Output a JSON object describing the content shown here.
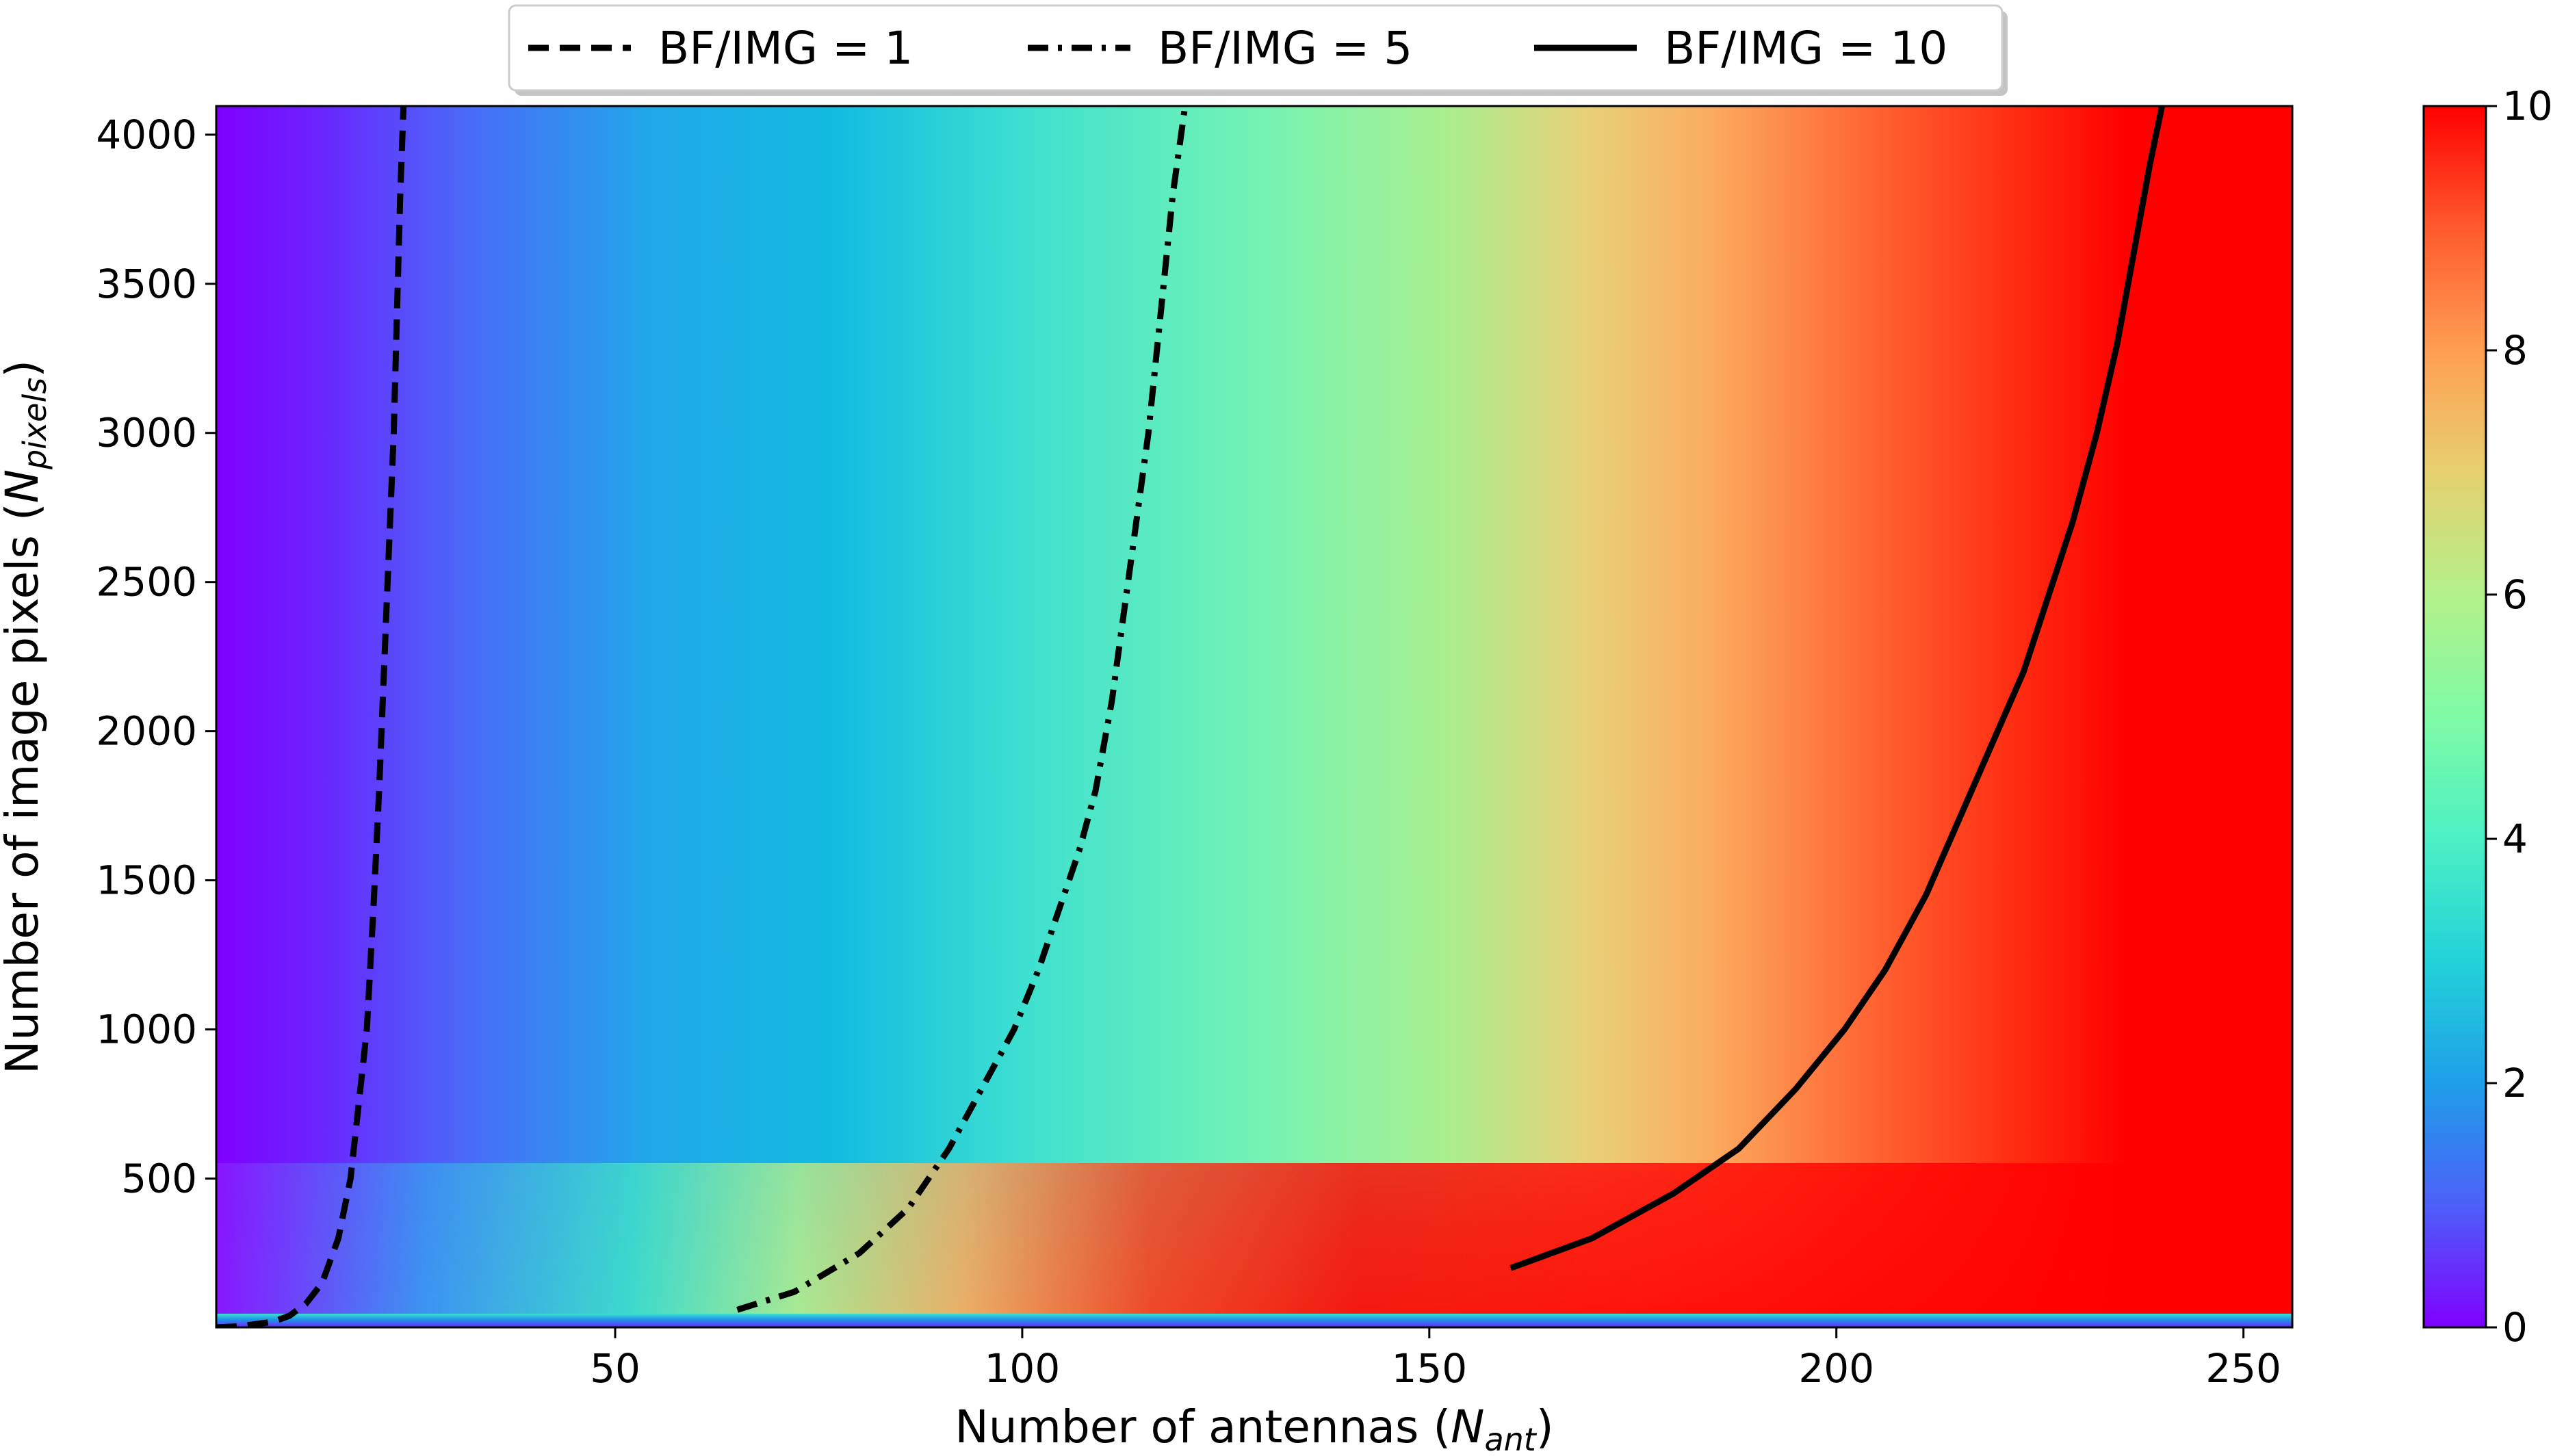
{
  "chart_data": {
    "type": "heatmap",
    "title": "",
    "xlabel": "Number of antennas (",
    "xlabel_sub": "ant",
    "ylabel": "Number of image pixels (",
    "ylabel_sub": "pixels",
    "xlim": [
      1,
      256
    ],
    "ylim": [
      1,
      4096
    ],
    "xticks": [
      50,
      100,
      150,
      200,
      250
    ],
    "yticks": [
      500,
      1000,
      1500,
      2000,
      2500,
      3000,
      3500,
      4000
    ],
    "colorbar": {
      "min": 0,
      "max": 10,
      "ticks": [
        0,
        2,
        4,
        6,
        8,
        10
      ],
      "colormap": "rainbow"
    },
    "legend_position": "top-center",
    "series": [
      {
        "name": "BF/IMG = 1",
        "style": "dashed",
        "x": [
          1,
          4,
          8,
          10,
          12,
          14,
          16,
          17.5,
          18.5,
          19.5,
          20.3,
          21,
          21.6,
          22.2,
          22.8,
          23.2,
          23.6,
          24
        ],
        "y": [
          1,
          5,
          20,
          40,
          80,
          150,
          300,
          500,
          750,
          1000,
          1400,
          1800,
          2200,
          2600,
          3000,
          3400,
          3800,
          4096
        ]
      },
      {
        "name": "BF/IMG = 5",
        "style": "dashdot",
        "x": [
          65,
          72,
          80,
          86,
          91,
          95,
          99,
          102,
          104.5,
          107,
          109,
          111,
          112.5,
          114,
          115.5,
          117,
          118.5,
          120
        ],
        "y": [
          60,
          120,
          250,
          400,
          600,
          800,
          1000,
          1200,
          1400,
          1600,
          1800,
          2100,
          2400,
          2700,
          3000,
          3400,
          3800,
          4096
        ]
      },
      {
        "name": "BF/IMG = 10",
        "style": "solid",
        "x": [
          160,
          170,
          180,
          188,
          195,
          201,
          206,
          211,
          215,
          219,
          223,
          226,
          229,
          232,
          234.5,
          236.5,
          238.5,
          240
        ],
        "y": [
          200,
          300,
          450,
          600,
          800,
          1000,
          1200,
          1450,
          1700,
          1950,
          2200,
          2450,
          2700,
          3000,
          3300,
          3600,
          3900,
          4096
        ]
      }
    ]
  }
}
